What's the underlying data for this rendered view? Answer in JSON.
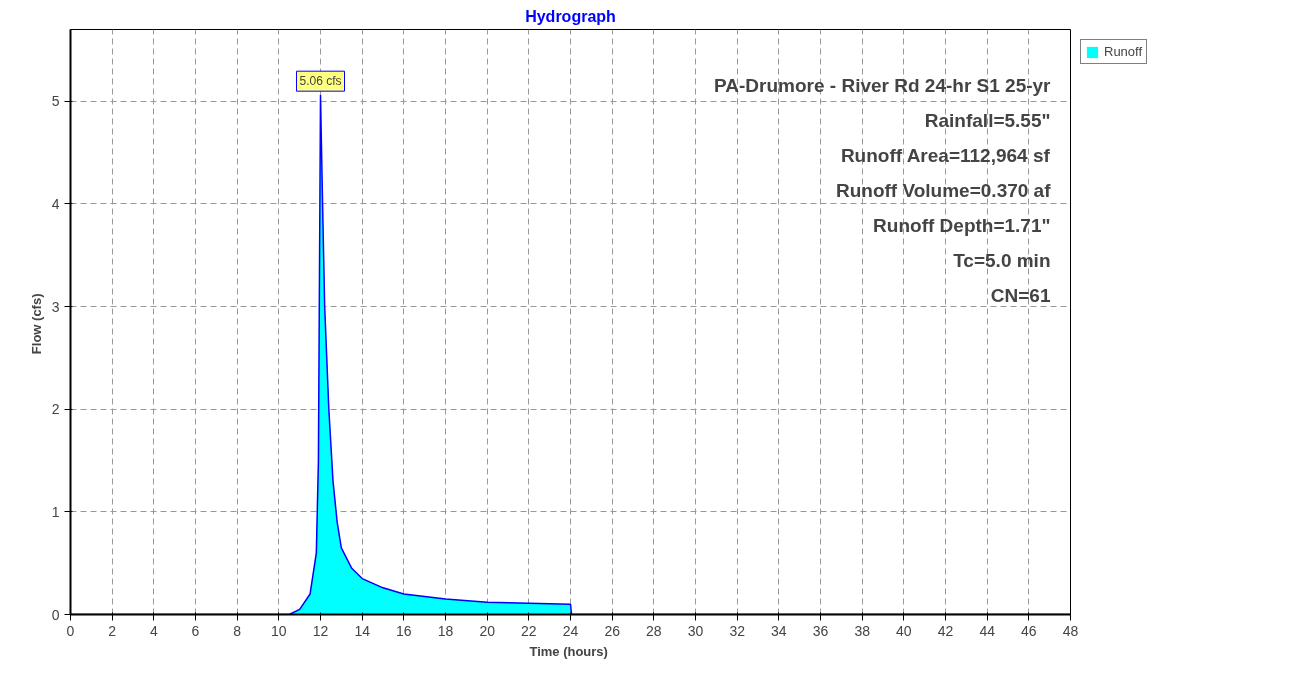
{
  "chart_data": {
    "type": "area",
    "title": "Hydrograph",
    "xlabel": "Time  (hours)",
    "ylabel": "Flow  (cfs)",
    "x": [
      0,
      10.5,
      11.0,
      11.5,
      11.8,
      11.9,
      12.0,
      12.1,
      12.2,
      12.4,
      12.6,
      12.8,
      13.0,
      13.5,
      14,
      15,
      16,
      18,
      20,
      22,
      24,
      24.05,
      48
    ],
    "series": [
      {
        "name": "Runoff",
        "color": "#00ffff",
        "values": [
          0,
          0,
          0.05,
          0.2,
          0.6,
          1.5,
          5.06,
          4.0,
          3.0,
          2.0,
          1.3,
          0.9,
          0.65,
          0.45,
          0.35,
          0.26,
          0.2,
          0.15,
          0.12,
          0.11,
          0.1,
          0,
          0
        ]
      }
    ],
    "xlim": [
      0,
      48
    ],
    "ylim": [
      0,
      5.7
    ],
    "xticks": [
      0,
      2,
      4,
      6,
      8,
      10,
      12,
      14,
      16,
      18,
      20,
      22,
      24,
      26,
      28,
      30,
      32,
      34,
      36,
      38,
      40,
      42,
      44,
      46,
      48
    ],
    "yticks": [
      0,
      1,
      2,
      3,
      4,
      5
    ],
    "grid": true,
    "legend": "top right",
    "annotations": [
      {
        "text": "5.06 cfs",
        "x": 12,
        "y": 5.06
      },
      "PA-Drumore - River Rd 24-hr S1 25-yr",
      "Rainfall=5.55\"",
      "Runoff Area=112,964 sf",
      "Runoff Volume=0.370 af",
      "Runoff Depth=1.71\"",
      "Tc=5.0 min",
      "CN=61"
    ]
  }
}
